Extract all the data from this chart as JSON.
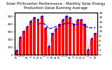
{
  "title": "Solar PV/Inverter Performance - Monthly Solar Energy Production Value Running Average",
  "months": [
    "M",
    "J",
    "J",
    "A",
    "S",
    "O",
    "N",
    "D",
    "J",
    "F",
    "M",
    "A",
    "M",
    "J",
    "J",
    "A",
    "S",
    "O",
    "N",
    "D",
    "J",
    "F",
    "M"
  ],
  "solar_kwh": [
    55,
    230,
    310,
    370,
    440,
    490,
    460,
    500,
    350,
    100,
    280,
    340,
    400,
    460,
    500,
    490,
    400,
    450,
    460,
    400,
    60,
    200,
    280
  ],
  "daily_avg": [
    1.8,
    7.5,
    10,
    12,
    14.5,
    16,
    15,
    16.5,
    11.5,
    3.5,
    9,
    11,
    13,
    15,
    16.5,
    16,
    13,
    15,
    15,
    13,
    2,
    7,
    9
  ],
  "running_avg": [
    null,
    null,
    null,
    null,
    null,
    null,
    13,
    13.5,
    13,
    11,
    11.5,
    12,
    12.5,
    13,
    13.5,
    13.5,
    13,
    13,
    13,
    12.5,
    11.5,
    11.5,
    11.5
  ],
  "bar_color": "#ff0000",
  "daily_color": "#0000ff",
  "avg_color": "#0000dd",
  "ylim_left": [
    0,
    550
  ],
  "ylim_right": [
    0,
    18
  ],
  "yticks_left": [
    0,
    100,
    200,
    300,
    400,
    500
  ],
  "yticks_right": [
    0,
    2,
    4,
    6,
    8,
    10,
    12,
    14,
    16,
    18
  ],
  "bg_color": "#ffffff",
  "grid_color": "#aaaaaa",
  "title_fontsize": 3.8,
  "tick_fontsize": 3.0,
  "label_fontsize": 3.2
}
